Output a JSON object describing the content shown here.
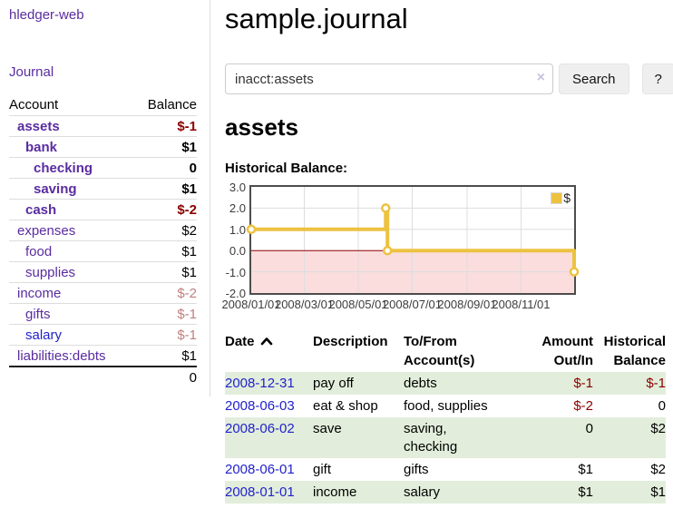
{
  "header": {
    "title": "sample.journal"
  },
  "sidebar": {
    "brand": "hledger-web",
    "journal_link": "Journal",
    "accounts_table": {
      "headers": {
        "account": "Account",
        "balance": "Balance"
      },
      "rows": [
        {
          "name": "assets",
          "balance": "$-1"
        },
        {
          "name": "bank",
          "balance": "$1"
        },
        {
          "name": "checking",
          "balance": "0"
        },
        {
          "name": "saving",
          "balance": "$1"
        },
        {
          "name": "cash",
          "balance": "$-2"
        },
        {
          "name": "expenses",
          "balance": "$2"
        },
        {
          "name": "food",
          "balance": "$1"
        },
        {
          "name": "supplies",
          "balance": "$1"
        },
        {
          "name": "income",
          "balance": "$-2"
        },
        {
          "name": "gifts",
          "balance": "$-1"
        },
        {
          "name": "salary",
          "balance": "$-1"
        },
        {
          "name": "liabilities:debts",
          "balance": "$1"
        }
      ],
      "total": "0"
    }
  },
  "search": {
    "query": "inacct:assets",
    "clear_icon": "×",
    "button": "Search",
    "help_button": "?"
  },
  "account_view": {
    "heading": "assets",
    "chart_title": "Historical Balance:"
  },
  "chart_data": {
    "type": "line",
    "style": "steps",
    "title": "Historical Balance of assets",
    "series": [
      {
        "name": "$",
        "color": "#edc240",
        "points": [
          [
            "2008-01-01",
            1
          ],
          [
            "2008-06-01",
            2
          ],
          [
            "2008-06-03",
            0
          ],
          [
            "2008-12-31",
            -1
          ]
        ]
      }
    ],
    "xlim": [
      "2008-01-01",
      "2008-12-31"
    ],
    "ylim": [
      -2,
      3
    ],
    "yticks": [
      "3.0",
      "2.0",
      "1.0",
      "0.0",
      "-1.0",
      "-2.0"
    ],
    "xticks": [
      "2008/01/01",
      "2008/03/01",
      "2008/05/01",
      "2008/07/01",
      "2008/09/01",
      "2008/11/01"
    ],
    "legend": {
      "label": "$",
      "position": "top-right"
    },
    "grid": true,
    "zero_line_color": "#8b0000",
    "negative_region_color": "#fbdddd",
    "grid_color": "#dddddd"
  },
  "register_table": {
    "headers": {
      "date": "Date",
      "description": "Description",
      "account": "To/From\nAccount(s)",
      "amount": "Amount\nOut/In",
      "balance": "Historical\nBalance"
    },
    "rows": [
      {
        "date": "2008-12-31",
        "description": "pay off",
        "account": "debts",
        "amount": "$-1",
        "balance": "$-1"
      },
      {
        "date": "2008-06-03",
        "description": "eat & shop",
        "account": "food, supplies",
        "amount": "$-2",
        "balance": "0"
      },
      {
        "date": "2008-06-02",
        "description": "save",
        "account": "saving,\nchecking",
        "amount": "0",
        "balance": "$2"
      },
      {
        "date": "2008-06-01",
        "description": "gift",
        "account": "gifts",
        "amount": "$1",
        "balance": "$2"
      },
      {
        "date": "2008-01-01",
        "description": "income",
        "account": "salary",
        "amount": "$1",
        "balance": "$1"
      }
    ]
  }
}
